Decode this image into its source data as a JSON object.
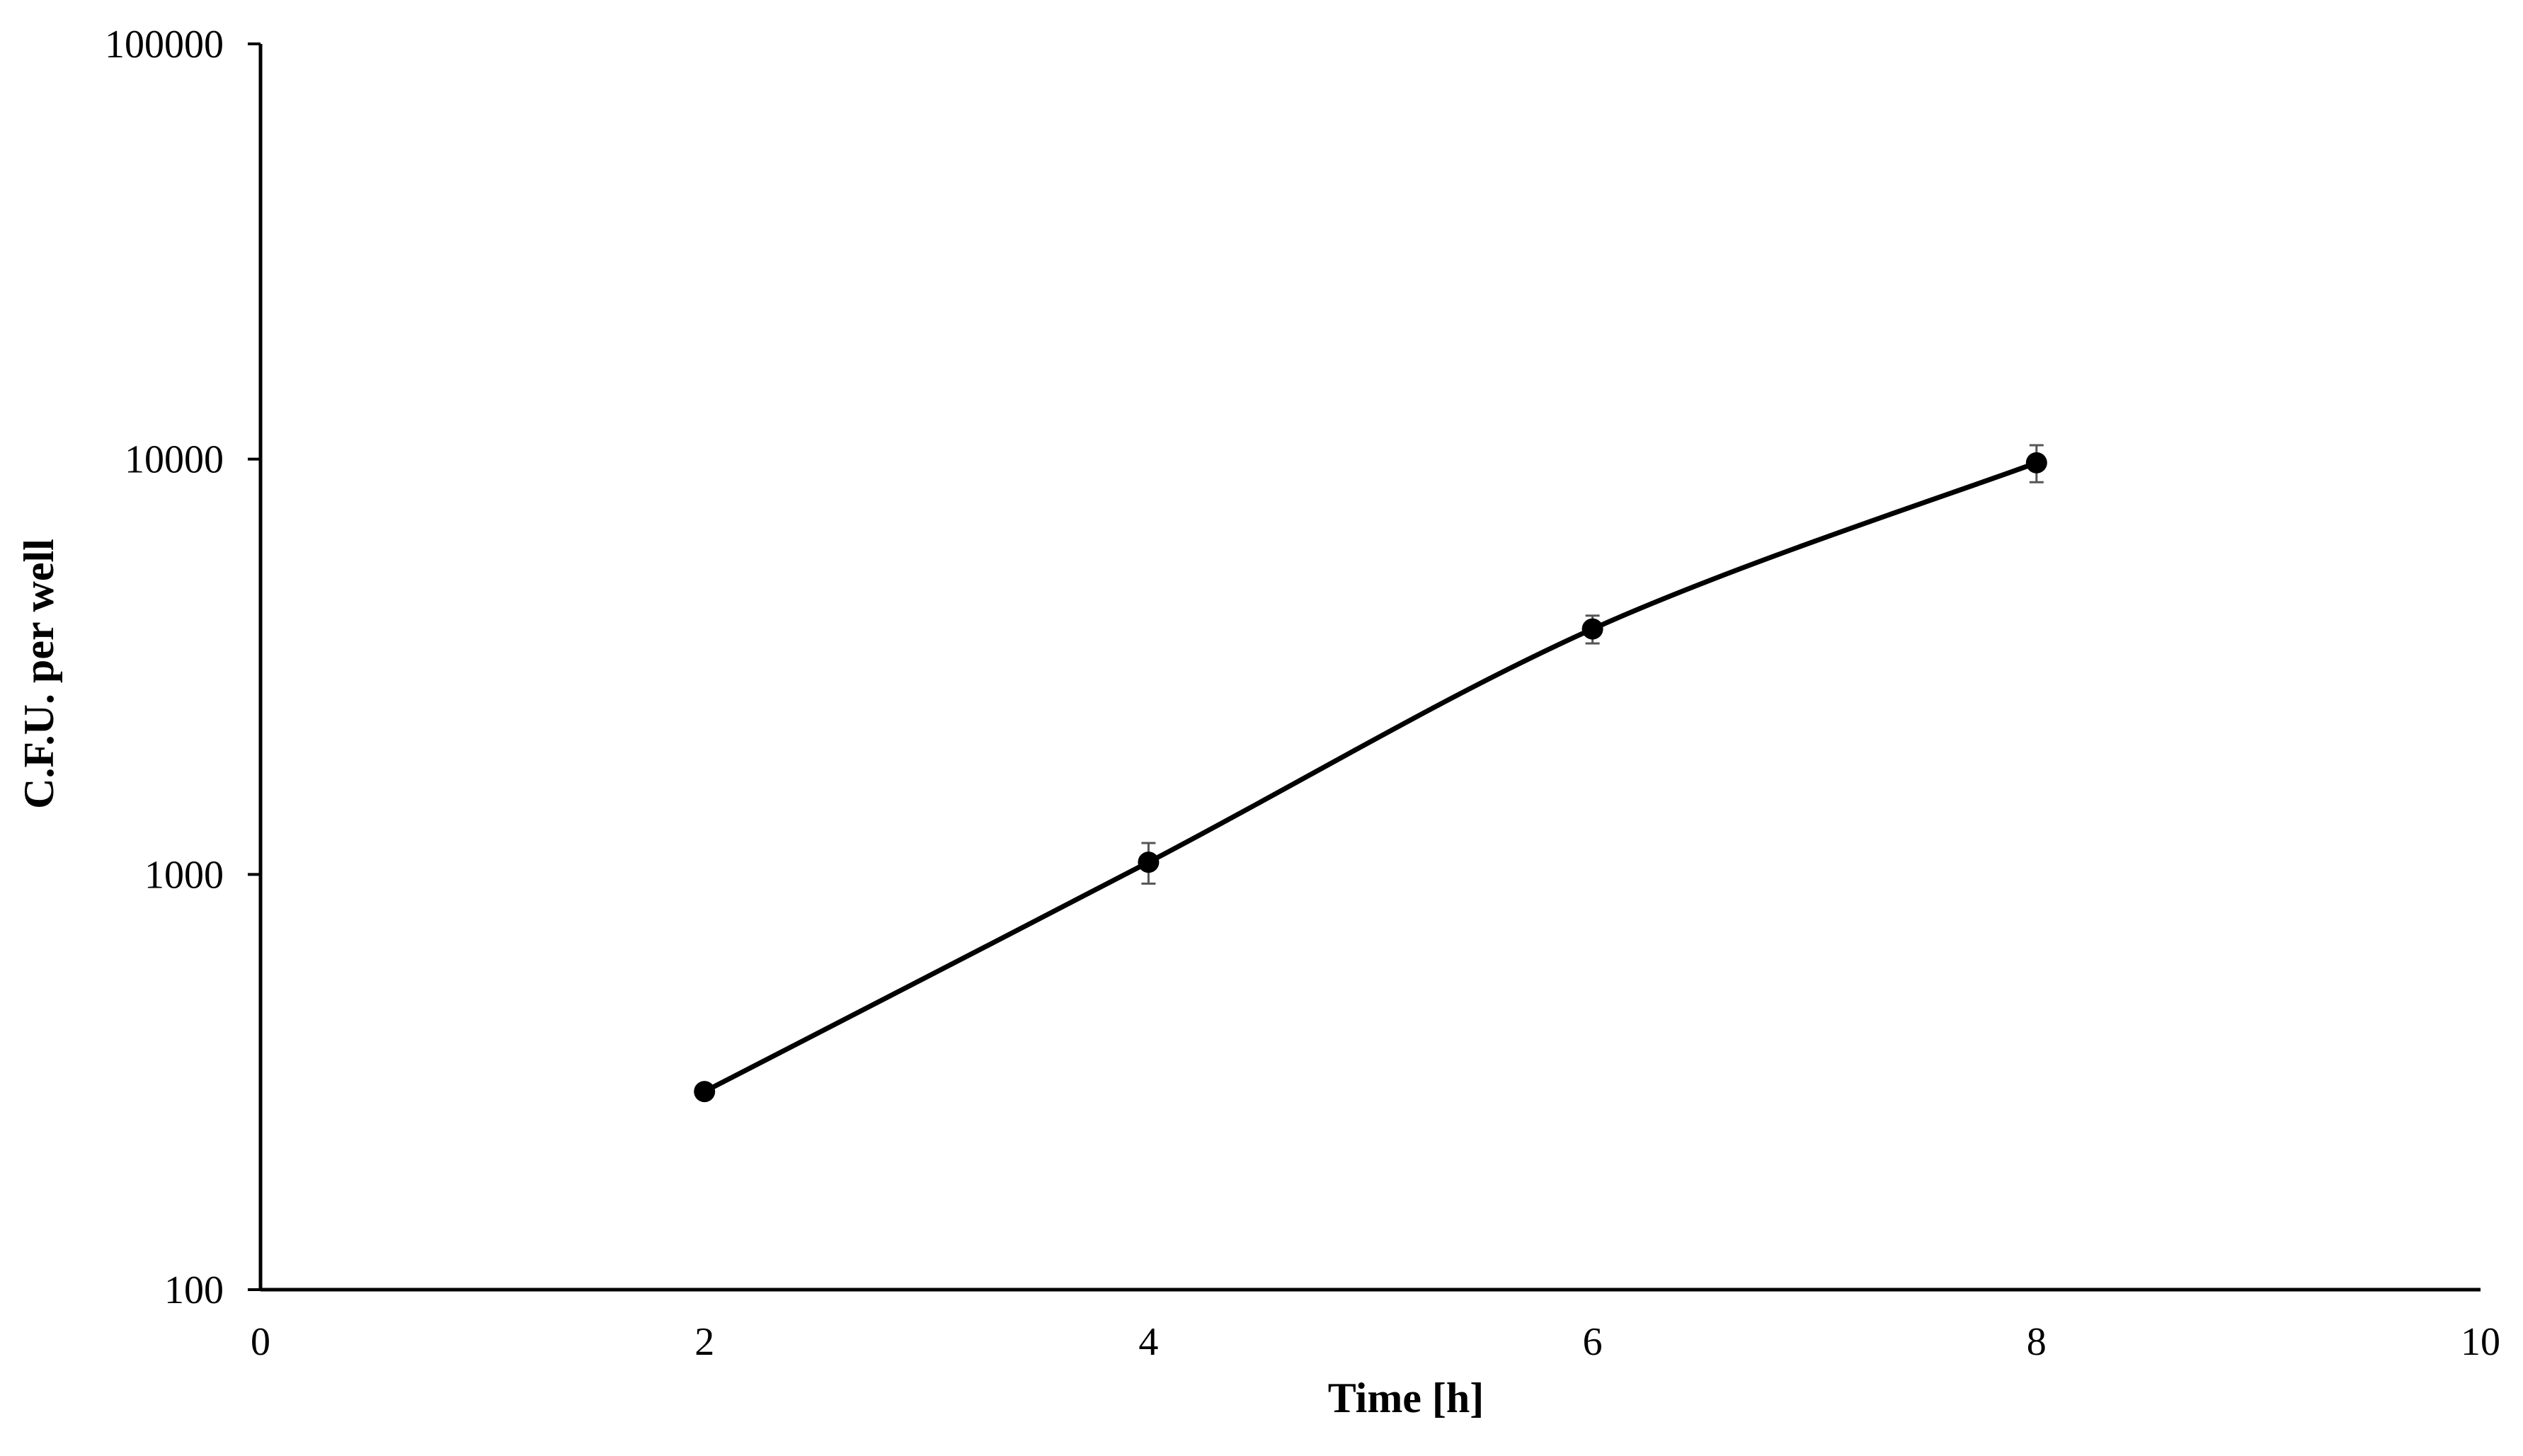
{
  "chart_data": {
    "type": "line",
    "title": "",
    "xlabel": "Time [h]",
    "ylabel": "C.F.U. per well",
    "xlim": [
      0,
      10
    ],
    "ylim": [
      100,
      100000
    ],
    "yscale": "log",
    "x_ticks": [
      "0",
      "2",
      "4",
      "6",
      "8",
      "10"
    ],
    "y_ticks": [
      "100",
      "1000",
      "10000",
      "100000"
    ],
    "grid": false,
    "legend": "none",
    "line_style": "smoothed",
    "series": [
      {
        "x": [
          2,
          4,
          6,
          8
        ],
        "y": [
          300,
          1070,
          3900,
          9800
        ],
        "error": [
          0,
          120,
          300,
          1000
        ],
        "color": "#000000"
      }
    ]
  }
}
